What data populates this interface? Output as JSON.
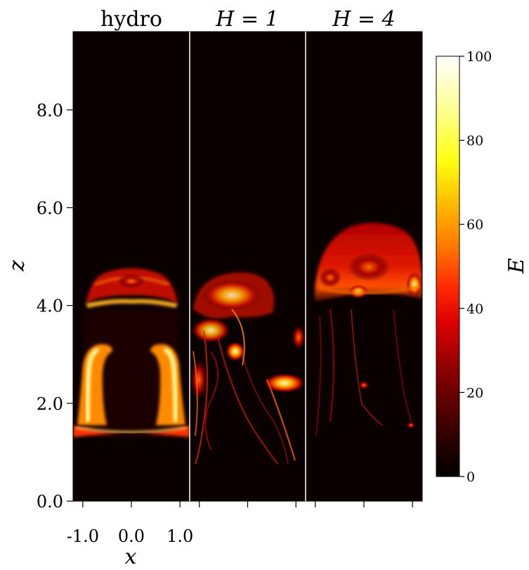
{
  "chart_data": {
    "type": "heatmap",
    "panels": [
      {
        "title": "hydro",
        "title_math": false
      },
      {
        "title": "H = 1",
        "title_math": true
      },
      {
        "title": "H = 4",
        "title_math": true
      }
    ],
    "xlabel": "x",
    "ylabel": "z",
    "x_ticks": [
      -1.0,
      0.0,
      1.0
    ],
    "x_tick_labels": [
      "-1.0",
      "0.0",
      "1.0"
    ],
    "xlim": [
      -1.2,
      1.2
    ],
    "ylim": [
      0.0,
      9.6
    ],
    "y_ticks": [
      0.0,
      2.0,
      4.0,
      6.0,
      8.0
    ],
    "y_tick_labels": [
      "0.0",
      "2.0",
      "4.0",
      "6.0",
      "8.0"
    ],
    "colorbar": {
      "label": "E",
      "range": [
        0,
        100
      ],
      "ticks": [
        0,
        20,
        40,
        60,
        80,
        100
      ],
      "tick_labels": [
        "0",
        "20",
        "40",
        "60",
        "80",
        "100"
      ],
      "colormap": "hot"
    },
    "colors": {
      "background": "#0b0000",
      "panel_divider": "#ffffff",
      "hot_low": "#000000",
      "hot_mid": "#ff2a00",
      "hot_high": "#ffffff"
    },
    "features": {
      "hydro": {
        "cap_z": [
          3.95,
          4.75
        ],
        "ring_z": [
          1.35,
          3.15
        ],
        "description_level": 45
      },
      "H1": {
        "plume_z": [
          0.7,
          4.65
        ],
        "description_level": 55
      },
      "H4": {
        "cap_z": [
          4.05,
          5.7
        ],
        "tail_z": [
          1.45,
          4.1
        ],
        "description_level": 40
      }
    }
  }
}
